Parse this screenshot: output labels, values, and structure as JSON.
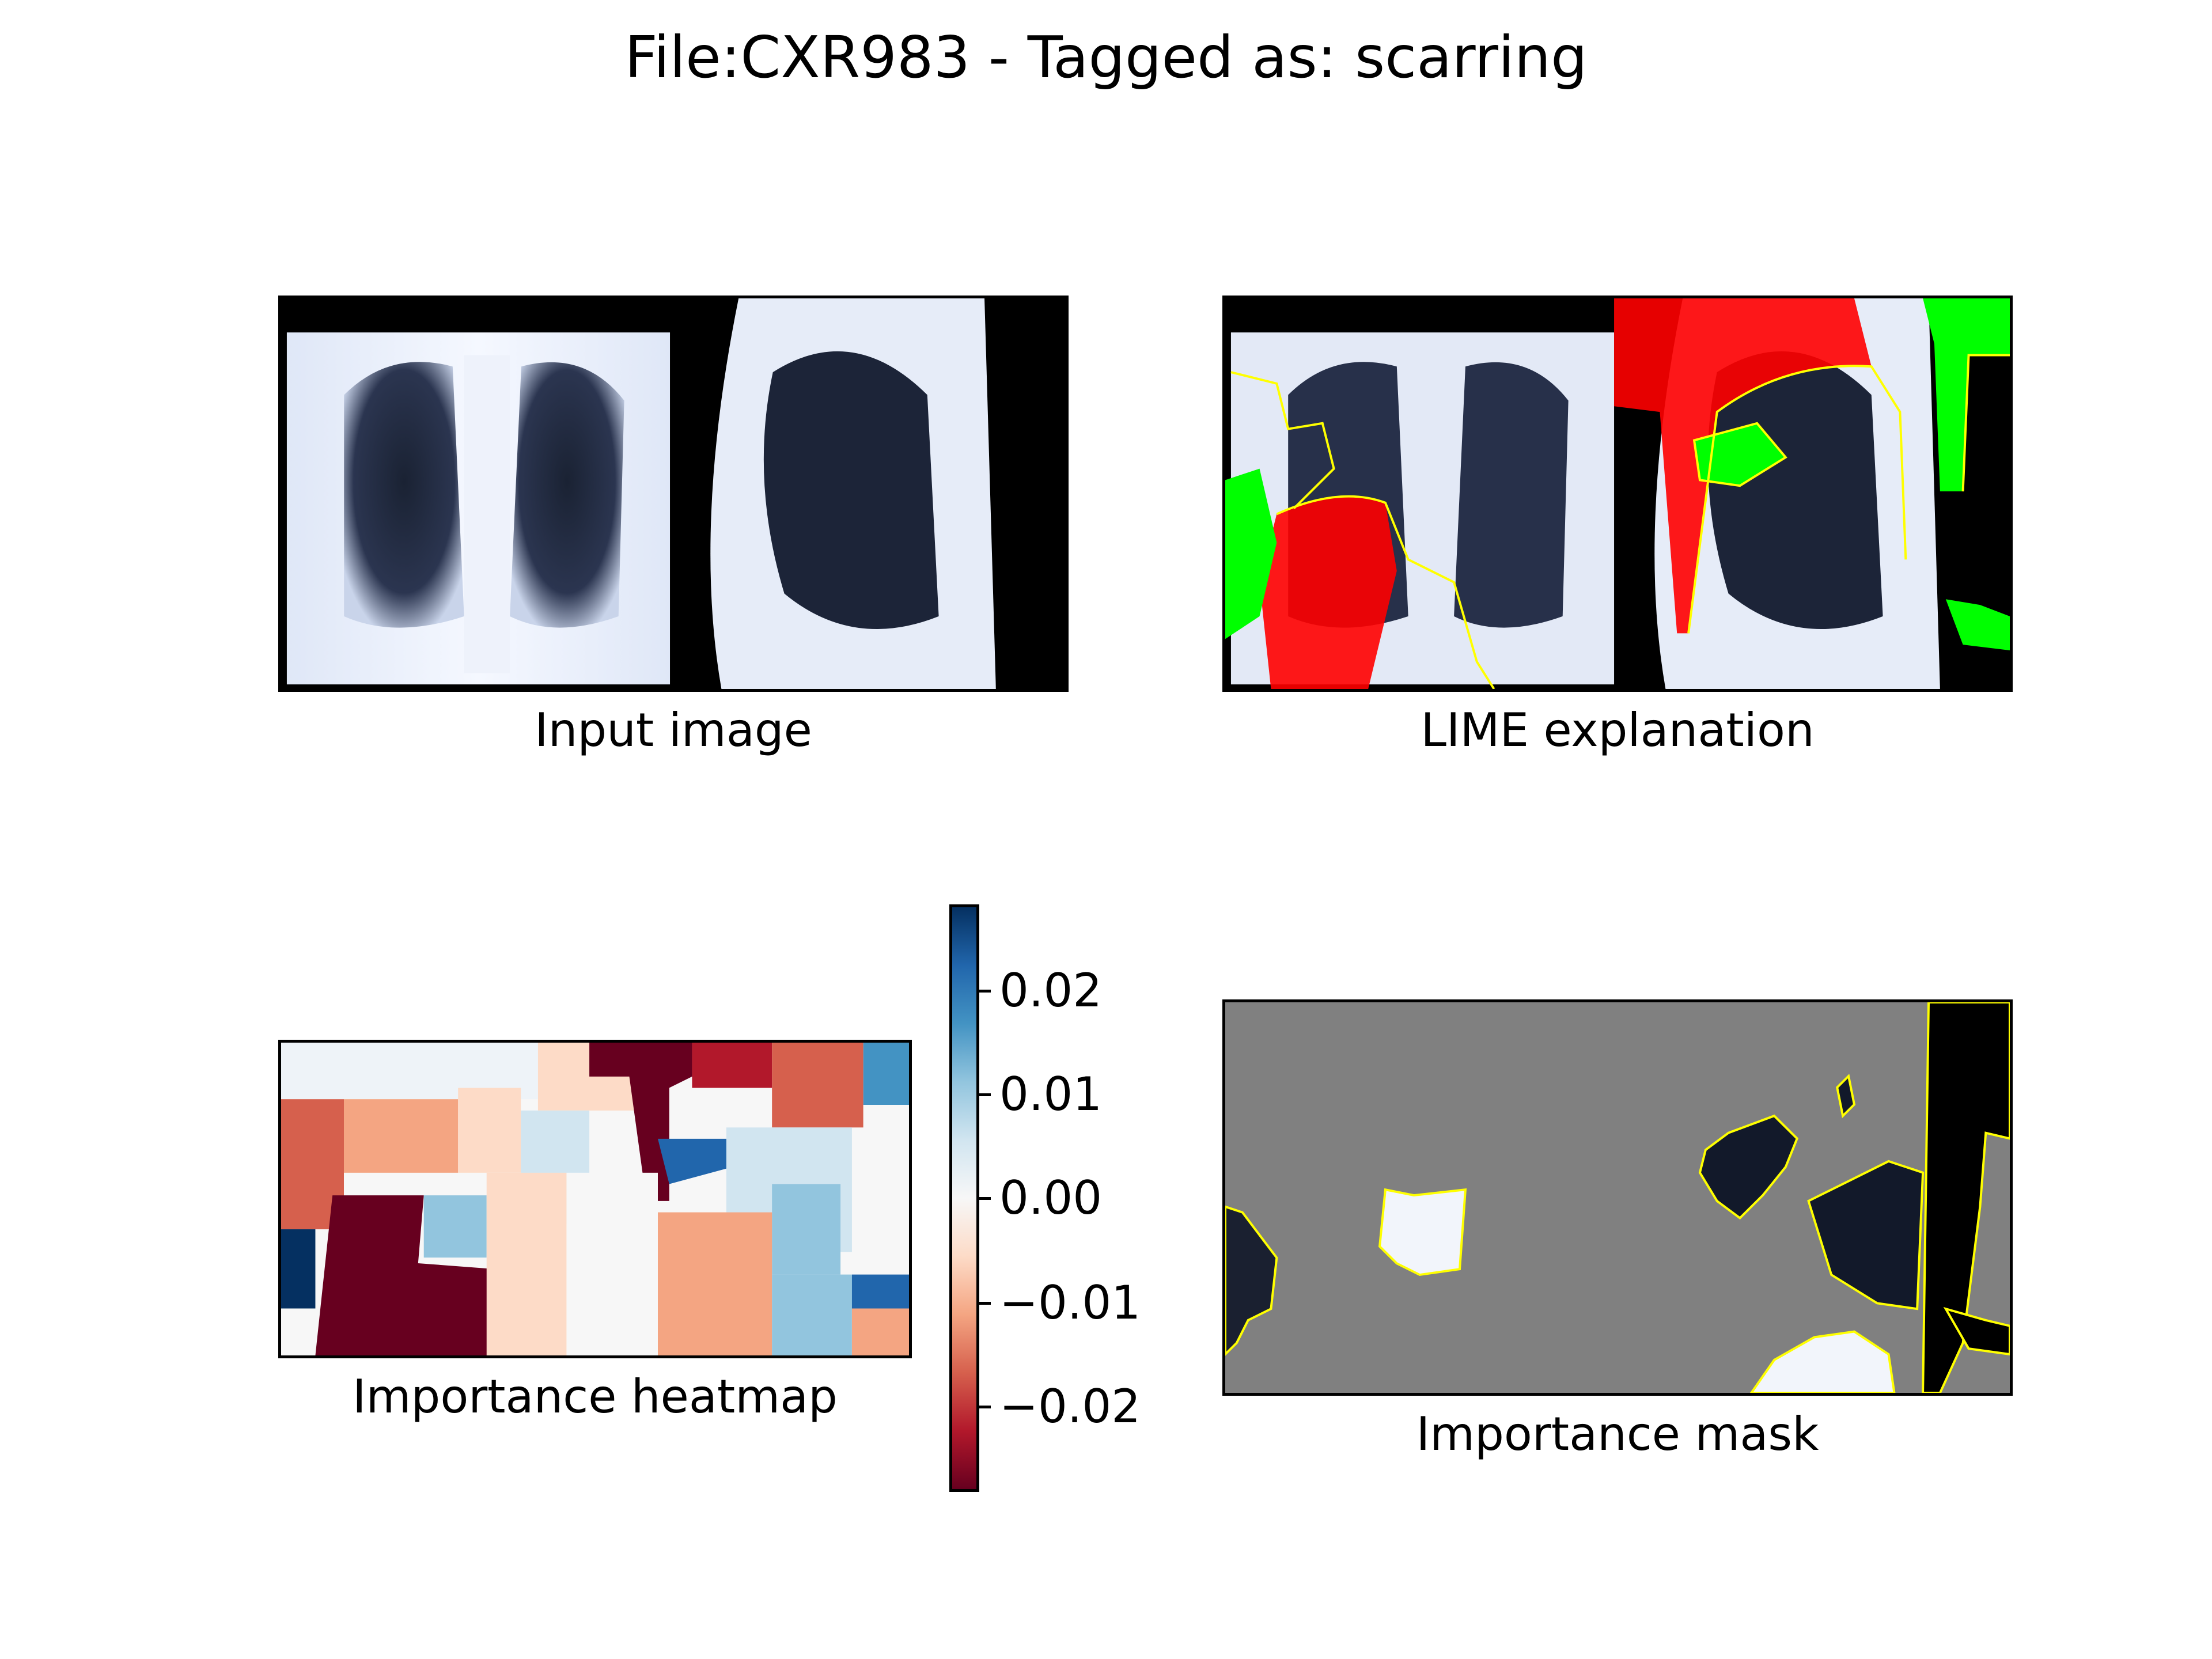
{
  "title": "File:CXR983 - Tagged as: scarring",
  "panels": {
    "input": {
      "caption": "Input image"
    },
    "lime": {
      "caption": "LIME explanation"
    },
    "heatmap": {
      "caption": "Importance heatmap"
    },
    "mask": {
      "caption": "Importance mask"
    }
  },
  "colorbar": {
    "ticks": [
      "0.02",
      "0.01",
      "0.00",
      "−0.01",
      "−0.02"
    ],
    "tick_values": [
      0.02,
      0.01,
      0.0,
      -0.01,
      -0.02
    ],
    "range": [
      -0.028,
      0.028
    ],
    "colormap": [
      "#67001f",
      "#b2182b",
      "#d6604d",
      "#f4a582",
      "#fddbc7",
      "#f7f7f7",
      "#d1e5f0",
      "#92c5de",
      "#4393c3",
      "#2166ac",
      "#053061"
    ]
  },
  "colors": {
    "lime_positive": "#00ff00",
    "lime_negative": "#ff0000",
    "boundary": "#ffff00",
    "mask_background": "#808080"
  }
}
